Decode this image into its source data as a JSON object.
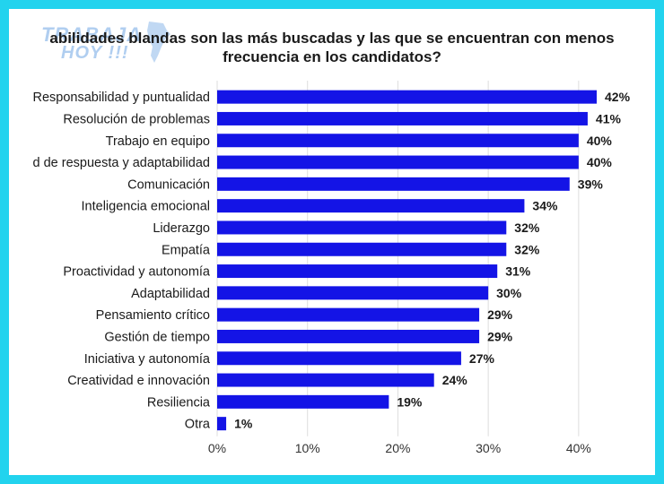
{
  "watermark": {
    "line1": "TRABAJA",
    "line2": "HOY !!!"
  },
  "title": {
    "line1": "abilidades blandas son las más buscadas y las que se encuentran con menos",
    "line2": "frecuencia en los candidatos?"
  },
  "colors": {
    "border": "#22d3ee",
    "bar": "#1414e6",
    "grid": "#dddddd",
    "text": "#1a1a1a"
  },
  "chart_data": {
    "type": "bar",
    "orientation": "horizontal",
    "categories": [
      "Responsabilidad y puntualidad",
      "Resolución de problemas",
      "Trabajo en equipo",
      "d de respuesta y adaptabilidad",
      "Comunicación",
      "Inteligencia emocional",
      "Liderazgo",
      "Empatía",
      "Proactividad y autonomía",
      "Adaptabilidad",
      "Pensamiento crítico",
      "Gestión de tiempo",
      "Iniciativa y autonomía",
      "Creatividad e innovación",
      "Resiliencia",
      "Otra"
    ],
    "values": [
      42,
      41,
      40,
      40,
      39,
      34,
      32,
      32,
      31,
      30,
      29,
      29,
      27,
      24,
      19,
      1
    ],
    "value_labels": [
      "42%",
      "41%",
      "40%",
      "40%",
      "39%",
      "34%",
      "32%",
      "32%",
      "31%",
      "30%",
      "29%",
      "29%",
      "27%",
      "24%",
      "19%",
      "1%"
    ],
    "x_ticks": [
      "0%",
      "10%",
      "20%",
      "30%",
      "40%"
    ],
    "x_tick_values": [
      0,
      10,
      20,
      30,
      40
    ],
    "xlim": [
      0,
      42
    ],
    "grid": "vertical",
    "legend": "none"
  }
}
